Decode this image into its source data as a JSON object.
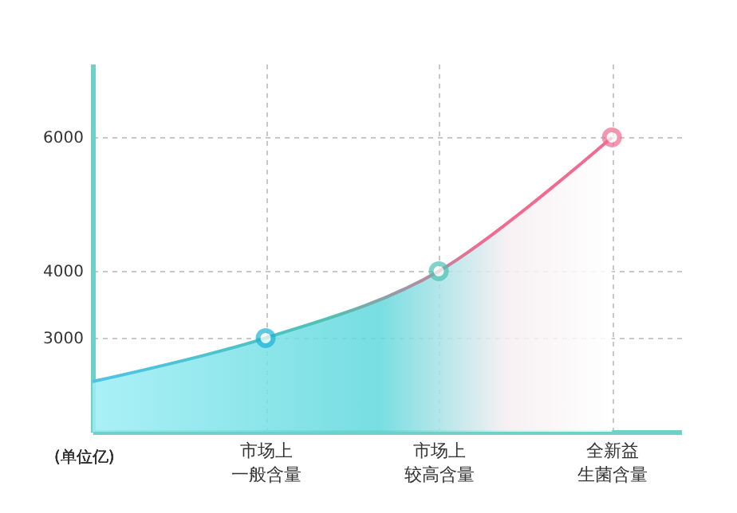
{
  "chart_data": {
    "type": "area",
    "annotations": [
      "(单位亿)"
    ],
    "categories": [
      null,
      "市场上一般含量",
      "市场上较高含量",
      "全新益生菌含量"
    ],
    "series": [
      {
        "color": "#5fd8dc",
        "colors": [
          "#4fc3e8",
          "#1ab3d9",
          "#4ec2b4",
          "#f06b8f"
        ],
        "values": [
          2350,
          3000,
          4000,
          6000
        ]
      }
    ],
    "ylim": [
      1600,
      7100
    ],
    "yticks": [
      3000,
      4000,
      6000
    ],
    "grid": true,
    "marker": "circle"
  }
}
